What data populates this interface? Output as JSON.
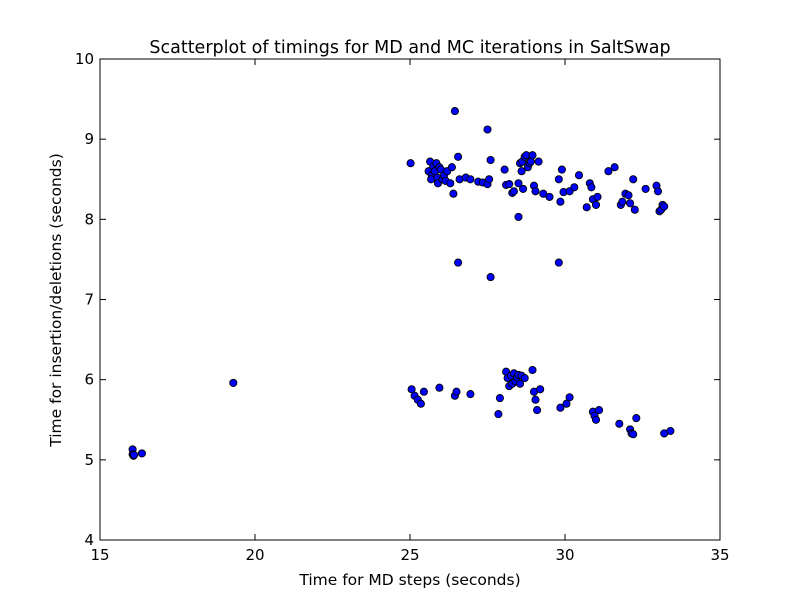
{
  "chart_data": {
    "type": "scatter",
    "title": "Scatterplot of timings for MD and MC iterations in SaltSwap",
    "xlabel": "Time for MD steps (seconds)",
    "ylabel": "Time for insertion/deletions (seconds)",
    "xlim": [
      15,
      35
    ],
    "ylim": [
      4,
      10
    ],
    "xticks": [
      15,
      20,
      25,
      30,
      35
    ],
    "yticks": [
      4,
      5,
      6,
      7,
      8,
      9,
      10
    ],
    "grid": false,
    "marker_color": "#0000ff",
    "marker_edge_color": "#000000",
    "points": [
      [
        16.05,
        5.13
      ],
      [
        16.05,
        5.07
      ],
      [
        16.08,
        5.05
      ],
      [
        16.1,
        5.06
      ],
      [
        16.35,
        5.08
      ],
      [
        19.3,
        5.96
      ],
      [
        25.02,
        8.7
      ],
      [
        25.65,
        8.72
      ],
      [
        25.6,
        8.6
      ],
      [
        25.7,
        8.55
      ],
      [
        25.68,
        8.5
      ],
      [
        25.75,
        8.66
      ],
      [
        25.8,
        8.6
      ],
      [
        25.85,
        8.7
      ],
      [
        25.88,
        8.52
      ],
      [
        25.9,
        8.45
      ],
      [
        25.95,
        8.65
      ],
      [
        26.0,
        8.62
      ],
      [
        26.05,
        8.5
      ],
      [
        26.1,
        8.55
      ],
      [
        26.15,
        8.48
      ],
      [
        26.2,
        8.6
      ],
      [
        26.3,
        8.45
      ],
      [
        26.35,
        8.65
      ],
      [
        26.4,
        8.32
      ],
      [
        26.55,
        8.78
      ],
      [
        26.6,
        8.5
      ],
      [
        26.8,
        8.52
      ],
      [
        26.95,
        8.5
      ],
      [
        27.2,
        8.47
      ],
      [
        27.35,
        8.46
      ],
      [
        27.5,
        8.44
      ],
      [
        27.55,
        8.5
      ],
      [
        27.6,
        8.74
      ],
      [
        26.45,
        9.35
      ],
      [
        27.5,
        9.12
      ],
      [
        28.05,
        8.62
      ],
      [
        28.1,
        8.43
      ],
      [
        28.2,
        8.44
      ],
      [
        28.3,
        8.33
      ],
      [
        28.35,
        8.35
      ],
      [
        28.5,
        8.45
      ],
      [
        28.55,
        8.7
      ],
      [
        28.6,
        8.6
      ],
      [
        28.62,
        8.72
      ],
      [
        28.7,
        8.78
      ],
      [
        28.75,
        8.8
      ],
      [
        28.8,
        8.65
      ],
      [
        28.85,
        8.7
      ],
      [
        28.9,
        8.72
      ],
      [
        28.95,
        8.8
      ],
      [
        29.0,
        8.42
      ],
      [
        29.05,
        8.35
      ],
      [
        29.15,
        8.72
      ],
      [
        29.3,
        8.32
      ],
      [
        28.65,
        8.38
      ],
      [
        29.5,
        8.28
      ],
      [
        29.8,
        8.5
      ],
      [
        29.85,
        8.22
      ],
      [
        29.9,
        8.62
      ],
      [
        29.95,
        8.34
      ],
      [
        30.15,
        8.35
      ],
      [
        30.3,
        8.4
      ],
      [
        30.45,
        8.55
      ],
      [
        30.7,
        8.15
      ],
      [
        30.8,
        8.45
      ],
      [
        30.85,
        8.4
      ],
      [
        30.9,
        8.25
      ],
      [
        31.0,
        8.18
      ],
      [
        31.05,
        8.28
      ],
      [
        31.4,
        8.6
      ],
      [
        31.6,
        8.65
      ],
      [
        31.8,
        8.18
      ],
      [
        31.85,
        8.22
      ],
      [
        31.95,
        8.32
      ],
      [
        32.05,
        8.3
      ],
      [
        32.1,
        8.2
      ],
      [
        32.2,
        8.5
      ],
      [
        32.25,
        8.12
      ],
      [
        32.6,
        8.38
      ],
      [
        32.95,
        8.42
      ],
      [
        33.0,
        8.35
      ],
      [
        33.05,
        8.1
      ],
      [
        33.1,
        8.12
      ],
      [
        33.15,
        8.18
      ],
      [
        33.2,
        8.16
      ],
      [
        28.5,
        8.03
      ],
      [
        26.55,
        7.46
      ],
      [
        27.6,
        7.28
      ],
      [
        29.8,
        7.46
      ],
      [
        25.05,
        5.88
      ],
      [
        25.15,
        5.8
      ],
      [
        25.25,
        5.75
      ],
      [
        25.35,
        5.7
      ],
      [
        25.45,
        5.85
      ],
      [
        25.95,
        5.9
      ],
      [
        26.45,
        5.8
      ],
      [
        26.5,
        5.85
      ],
      [
        26.95,
        5.82
      ],
      [
        27.85,
        5.57
      ],
      [
        27.9,
        5.77
      ],
      [
        28.1,
        6.1
      ],
      [
        28.15,
        6.02
      ],
      [
        28.2,
        5.92
      ],
      [
        28.25,
        6.05
      ],
      [
        28.3,
        5.95
      ],
      [
        28.35,
        6.08
      ],
      [
        28.4,
        5.98
      ],
      [
        28.45,
        6.03
      ],
      [
        28.5,
        6.06
      ],
      [
        28.55,
        5.95
      ],
      [
        28.6,
        6.05
      ],
      [
        28.7,
        6.02
      ],
      [
        28.95,
        6.12
      ],
      [
        29.0,
        5.85
      ],
      [
        29.05,
        5.75
      ],
      [
        29.1,
        5.62
      ],
      [
        29.2,
        5.88
      ],
      [
        29.85,
        5.65
      ],
      [
        30.05,
        5.7
      ],
      [
        30.15,
        5.78
      ],
      [
        30.9,
        5.6
      ],
      [
        30.95,
        5.55
      ],
      [
        31.0,
        5.5
      ],
      [
        31.1,
        5.62
      ],
      [
        31.75,
        5.45
      ],
      [
        32.1,
        5.38
      ],
      [
        32.15,
        5.33
      ],
      [
        32.2,
        5.32
      ],
      [
        32.3,
        5.52
      ],
      [
        33.2,
        5.33
      ],
      [
        33.4,
        5.36
      ]
    ]
  }
}
